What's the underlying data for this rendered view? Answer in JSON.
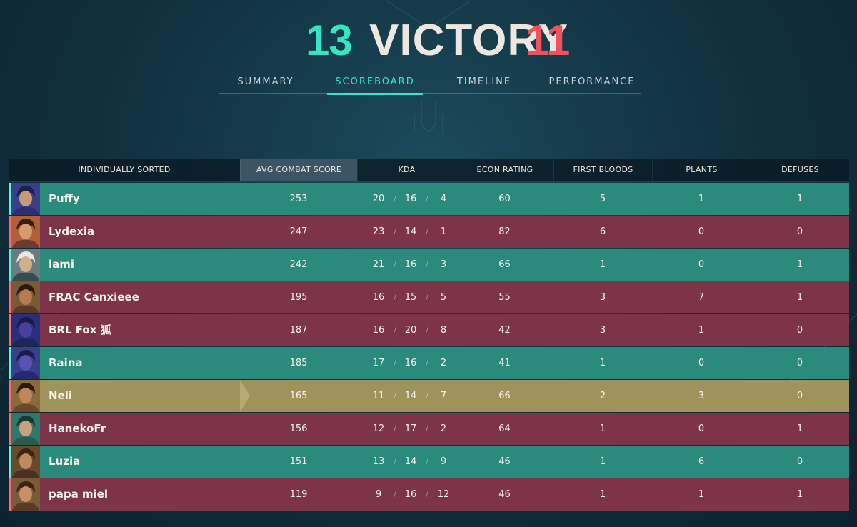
{
  "header": {
    "team_score": "13",
    "result": "VICTORY",
    "enemy_score": "11",
    "team_color": "#35e6c0",
    "enemy_color": "#f0515a"
  },
  "tabs": [
    {
      "label": "SUMMARY",
      "active": false
    },
    {
      "label": "SCOREBOARD",
      "active": true
    },
    {
      "label": "TIMELINE",
      "active": false
    },
    {
      "label": "PERFORMANCE",
      "active": false
    }
  ],
  "table": {
    "columns": [
      "INDIVIDUALLY SORTED",
      "AVG COMBAT SCORE",
      "KDA",
      "ECON RATING",
      "FIRST BLOODS",
      "PLANTS",
      "DEFUSES"
    ],
    "sorted_column": "AVG COMBAT SCORE",
    "kda_separator": "/",
    "rows": [
      {
        "name": "Puffy",
        "team": "green",
        "agent_icon": "agent-portrait-icon",
        "acs": "253",
        "kills": "20",
        "deaths": "16",
        "assists": "4",
        "econ": "60",
        "first_bloods": "5",
        "plants": "1",
        "defuses": "1"
      },
      {
        "name": "Lydexia",
        "team": "red",
        "agent_icon": "agent-portrait-icon",
        "acs": "247",
        "kills": "23",
        "deaths": "14",
        "assists": "1",
        "econ": "82",
        "first_bloods": "6",
        "plants": "0",
        "defuses": "0"
      },
      {
        "name": "lami",
        "team": "green",
        "agent_icon": "agent-portrait-icon",
        "acs": "242",
        "kills": "21",
        "deaths": "16",
        "assists": "3",
        "econ": "66",
        "first_bloods": "1",
        "plants": "0",
        "defuses": "1"
      },
      {
        "name": "FRAC Canxieee",
        "team": "red",
        "agent_icon": "agent-portrait-icon",
        "acs": "195",
        "kills": "16",
        "deaths": "15",
        "assists": "5",
        "econ": "55",
        "first_bloods": "3",
        "plants": "7",
        "defuses": "1"
      },
      {
        "name": "BRL Fox 狐",
        "team": "red",
        "agent_icon": "agent-portrait-icon",
        "acs": "187",
        "kills": "16",
        "deaths": "20",
        "assists": "8",
        "econ": "42",
        "first_bloods": "3",
        "plants": "1",
        "defuses": "0"
      },
      {
        "name": "Raina",
        "team": "green",
        "agent_icon": "agent-portrait-icon",
        "acs": "185",
        "kills": "17",
        "deaths": "16",
        "assists": "2",
        "econ": "41",
        "first_bloods": "1",
        "plants": "0",
        "defuses": "0"
      },
      {
        "name": "Neli",
        "team": "gold",
        "agent_icon": "agent-portrait-icon",
        "acs": "165",
        "kills": "11",
        "deaths": "14",
        "assists": "7",
        "econ": "66",
        "first_bloods": "2",
        "plants": "3",
        "defuses": "0"
      },
      {
        "name": "HanekoFr",
        "team": "red",
        "agent_icon": "agent-portrait-icon",
        "acs": "156",
        "kills": "12",
        "deaths": "17",
        "assists": "2",
        "econ": "64",
        "first_bloods": "1",
        "plants": "0",
        "defuses": "1"
      },
      {
        "name": "Luzia",
        "team": "green",
        "agent_icon": "agent-portrait-icon",
        "acs": "151",
        "kills": "13",
        "deaths": "14",
        "assists": "9",
        "econ": "46",
        "first_bloods": "1",
        "plants": "6",
        "defuses": "0"
      },
      {
        "name": "papa miel",
        "team": "red",
        "agent_icon": "agent-portrait-icon",
        "acs": "119",
        "kills": "9",
        "deaths": "16",
        "assists": "12",
        "econ": "46",
        "first_bloods": "1",
        "plants": "1",
        "defuses": "1"
      }
    ]
  },
  "colors": {
    "ally_row": "#2a8a7c",
    "enemy_row": "#7d3448",
    "self_row": "#9f935d"
  }
}
